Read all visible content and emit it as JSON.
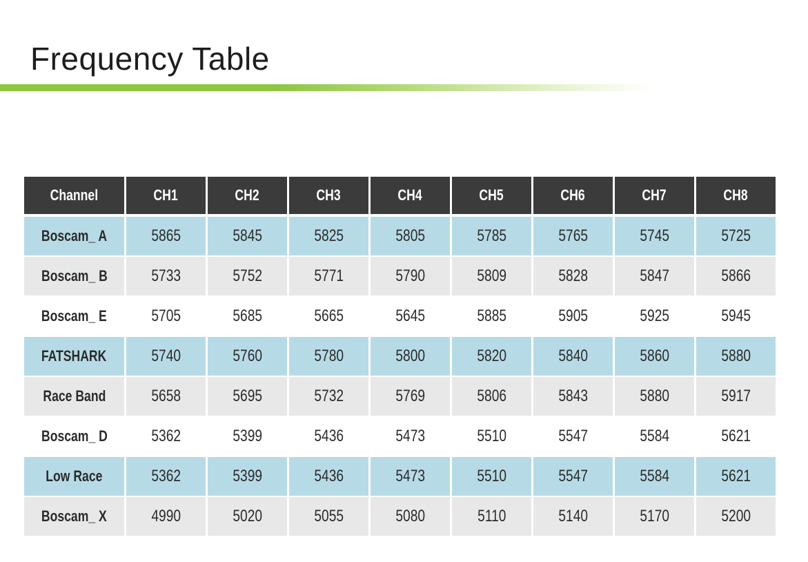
{
  "page": {
    "title": "Frequency Table"
  },
  "accent": {
    "green": "#8dc63f"
  },
  "table": {
    "colors": {
      "header_bg": "#3b3b3b",
      "header_text": "#ffffff",
      "row_blue": "#b7dbe6",
      "row_gray": "#e8e8e8",
      "row_white": "#ffffff",
      "cell_text": "#2b2b2b"
    },
    "columns": [
      "Channel",
      "CH1",
      "CH2",
      "CH3",
      "CH4",
      "CH5",
      "CH6",
      "CH7",
      "CH8"
    ],
    "rows": [
      {
        "label": "Boscam_ A",
        "shade": "blue",
        "values": [
          "5865",
          "5845",
          "5825",
          "5805",
          "5785",
          "5765",
          "5745",
          "5725"
        ]
      },
      {
        "label": "Boscam_ B",
        "shade": "gray",
        "values": [
          "5733",
          "5752",
          "5771",
          "5790",
          "5809",
          "5828",
          "5847",
          "5866"
        ]
      },
      {
        "label": "Boscam_ E",
        "shade": "white",
        "values": [
          "5705",
          "5685",
          "5665",
          "5645",
          "5885",
          "5905",
          "5925",
          "5945"
        ]
      },
      {
        "label": "FATSHARK",
        "shade": "blue",
        "values": [
          "5740",
          "5760",
          "5780",
          "5800",
          "5820",
          "5840",
          "5860",
          "5880"
        ]
      },
      {
        "label": "Race Band",
        "shade": "gray",
        "values": [
          "5658",
          "5695",
          "5732",
          "5769",
          "5806",
          "5843",
          "5880",
          "5917"
        ]
      },
      {
        "label": "Boscam_ D",
        "shade": "white",
        "values": [
          "5362",
          "5399",
          "5436",
          "5473",
          "5510",
          "5547",
          "5584",
          "5621"
        ]
      },
      {
        "label": "Low Race",
        "shade": "blue",
        "values": [
          "5362",
          "5399",
          "5436",
          "5473",
          "5510",
          "5547",
          "5584",
          "5621"
        ]
      },
      {
        "label": "Boscam_ X",
        "shade": "gray",
        "values": [
          "4990",
          "5020",
          "5055",
          "5080",
          "5110",
          "5140",
          "5170",
          "5200"
        ]
      }
    ]
  },
  "chart_data": {
    "type": "table",
    "title": "Frequency Table",
    "columns": [
      "Channel",
      "CH1",
      "CH2",
      "CH3",
      "CH4",
      "CH5",
      "CH6",
      "CH7",
      "CH8"
    ],
    "rows": [
      [
        "Boscam_ A",
        5865,
        5845,
        5825,
        5805,
        5785,
        5765,
        5745,
        5725
      ],
      [
        "Boscam_ B",
        5733,
        5752,
        5771,
        5790,
        5809,
        5828,
        5847,
        5866
      ],
      [
        "Boscam_ E",
        5705,
        5685,
        5665,
        5645,
        5885,
        5905,
        5925,
        5945
      ],
      [
        "FATSHARK",
        5740,
        5760,
        5780,
        5800,
        5820,
        5840,
        5860,
        5880
      ],
      [
        "Race Band",
        5658,
        5695,
        5732,
        5769,
        5806,
        5843,
        5880,
        5917
      ],
      [
        "Boscam_ D",
        5362,
        5399,
        5436,
        5473,
        5510,
        5547,
        5584,
        5621
      ],
      [
        "Low Race",
        5362,
        5399,
        5436,
        5473,
        5510,
        5547,
        5584,
        5621
      ],
      [
        "Boscam_ X",
        4990,
        5020,
        5055,
        5080,
        5110,
        5140,
        5170,
        5200
      ]
    ]
  }
}
